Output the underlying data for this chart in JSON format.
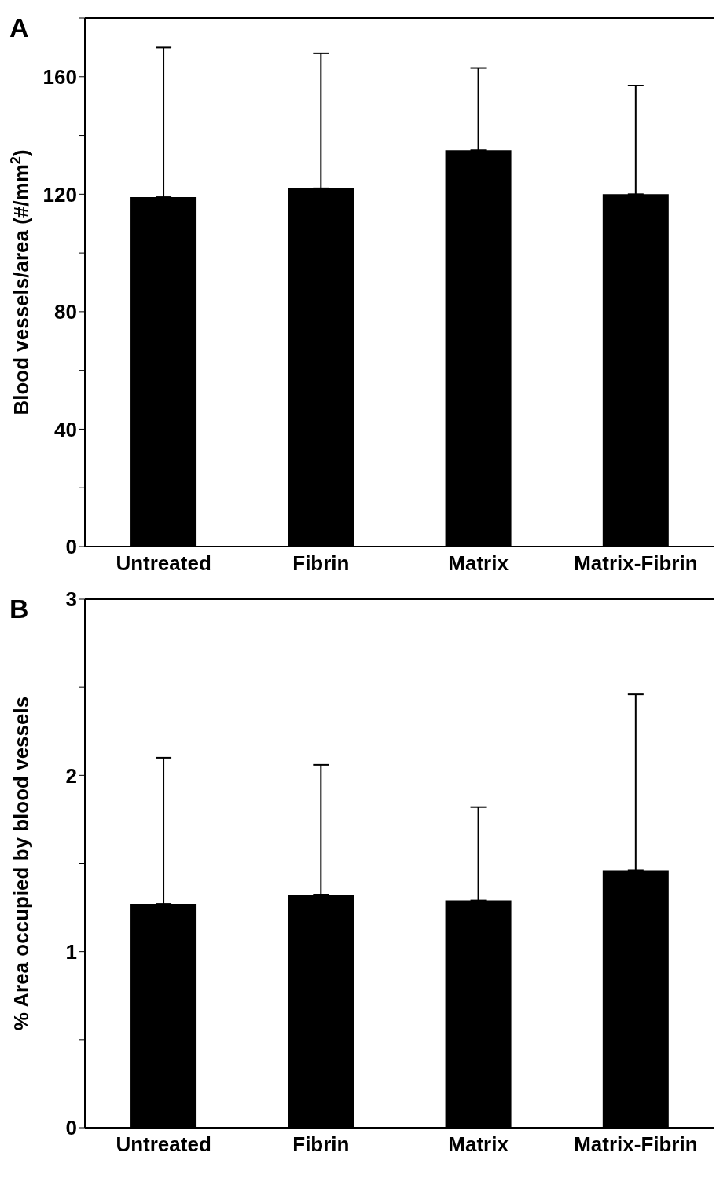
{
  "chart_data": [
    {
      "type": "bar",
      "annotations": [
        "A"
      ],
      "ylabel": "Blood vessels/area (#/mm$^{2}$)",
      "categories": [
        "Untreated",
        "Fibrin",
        "Matrix",
        "Matrix-Fibrin"
      ],
      "values": [
        119,
        122,
        135,
        120
      ],
      "color": "#000000",
      "errors": [
        [
          119,
          170
        ],
        [
          122,
          168
        ],
        [
          135,
          163
        ],
        [
          120,
          157
        ]
      ],
      "ylim": [
        0,
        180
      ],
      "yticks": [
        0,
        {
          "value": 20,
          "label": null
        },
        40,
        {
          "value": 60,
          "label": null
        },
        80,
        {
          "value": 100,
          "label": null
        },
        120,
        {
          "value": 140,
          "label": null
        },
        160,
        {
          "value": 180,
          "label": null
        }
      ],
      "grid": false,
      "legend": false
    },
    {
      "type": "bar",
      "annotations": [
        "B"
      ],
      "ylabel": "% Area occupied by blood vessels",
      "categories": [
        "Untreated",
        "Fibrin",
        "Matrix",
        "Matrix-Fibrin"
      ],
      "values": [
        1.27,
        1.32,
        1.29,
        1.46
      ],
      "color": "#000000",
      "errors": [
        [
          1.27,
          2.1
        ],
        [
          1.32,
          2.06
        ],
        [
          1.29,
          1.82
        ],
        [
          1.46,
          2.46
        ]
      ],
      "ylim": [
        0,
        3
      ],
      "yticks": [
        0,
        {
          "value": 0.5,
          "label": null
        },
        1,
        {
          "value": 1.5,
          "label": null
        },
        2,
        {
          "value": 2.5,
          "label": null
        },
        3
      ],
      "grid": false,
      "legend": false
    }
  ]
}
